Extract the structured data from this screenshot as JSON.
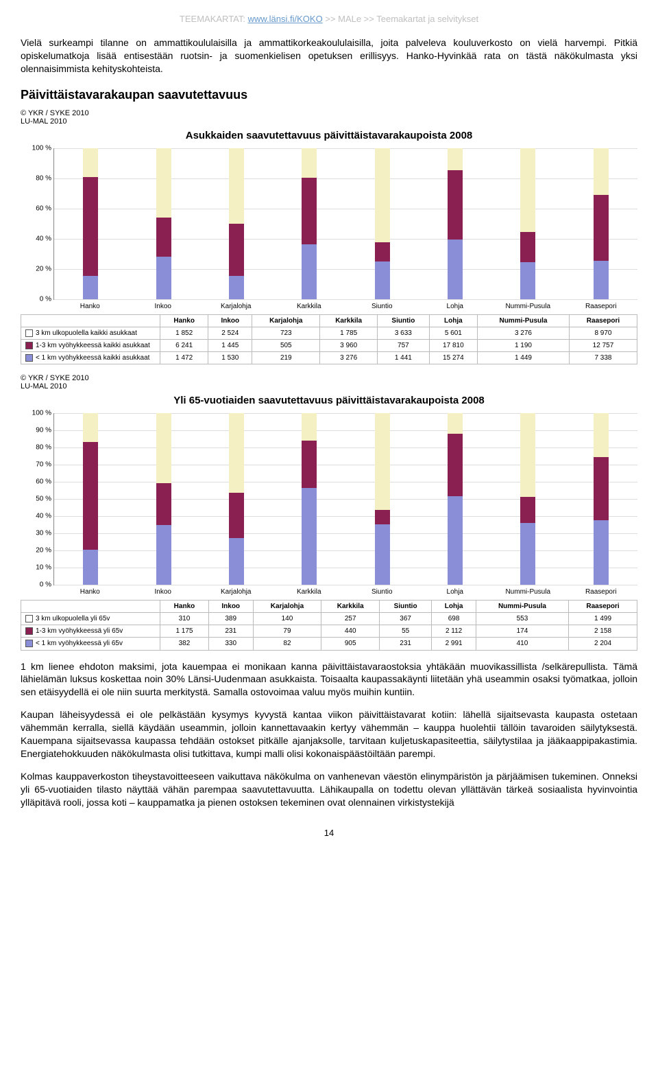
{
  "breadcrumb": {
    "prefix": "TEEMAKARTAT: ",
    "link": "www.länsi.fi/KOKO",
    "tail": " >> MALe >> Teemakartat ja selvitykset"
  },
  "p1": "Vielä surkeampi tilanne on ammattikoululaisilla ja ammattikorkeakoululaisilla, joita palveleva kouluverkosto on vielä harvempi. Pitkiä opiskelumatkoja lisää entisestään ruotsin- ja suomenkielisen opetuksen erillisyys. Hanko-Hyvinkää rata on tästä näkökulmasta yksi olennaisimmista kehityskohteista.",
  "section_title": "Päivittäistavarakaupan saavutettavuus",
  "chart1": {
    "attribution": "© YKR / SYKE 2010\nLU-MAL 2010",
    "title": "Asukkaiden saavutettavuus päivittäistavarakaupoista 2008",
    "categories": [
      "Hanko",
      "Inkoo",
      "Karjalohja",
      "Karkkila",
      "Siuntio",
      "Lohja",
      "Nummi-Pusula",
      "Raasepori"
    ],
    "series": [
      {
        "label": "3 km ulkopuolella kaikki asukkaat",
        "color": "#f5f0c4",
        "sq": "#ffffff"
      },
      {
        "label": "1-3 km vyöhykkeessä kaikki asukkaat",
        "color": "#8a1f52",
        "sq": "#8a1f52"
      },
      {
        "label": "< 1 km vyöhykkeessä kaikki asukkaat",
        "color": "#8a8ed6",
        "sq": "#8a8ed6"
      }
    ],
    "values": [
      [
        1852,
        2524,
        723,
        1785,
        3633,
        5601,
        3276,
        8970
      ],
      [
        6241,
        1445,
        505,
        3960,
        757,
        17810,
        1190,
        12757
      ],
      [
        1472,
        1530,
        219,
        3276,
        1441,
        15274,
        1449,
        7338
      ]
    ],
    "ymax": 100,
    "ystep": 20
  },
  "chart2": {
    "attribution": "© YKR / SYKE 2010\nLU-MAL 2010",
    "title": "Yli 65-vuotiaiden saavutettavuus päivittäistavarakaupoista 2008",
    "categories": [
      "Hanko",
      "Inkoo",
      "Karjalohja",
      "Karkkila",
      "Siuntio",
      "Lohja",
      "Nummi-Pusula",
      "Raasepori"
    ],
    "series": [
      {
        "label": "3 km ulkopuolella yli 65v",
        "color": "#f5f0c4",
        "sq": "#ffffff"
      },
      {
        "label": "1-3 km vyöhykkeessä yli 65v",
        "color": "#8a1f52",
        "sq": "#8a1f52"
      },
      {
        "label": "< 1 km vyöhykkeessä yli 65v",
        "color": "#8a8ed6",
        "sq": "#8a8ed6"
      }
    ],
    "values": [
      [
        310,
        389,
        140,
        257,
        367,
        698,
        553,
        1499
      ],
      [
        1175,
        231,
        79,
        440,
        55,
        2112,
        174,
        2158
      ],
      [
        382,
        330,
        82,
        905,
        231,
        2991,
        410,
        2204
      ]
    ],
    "ymax": 100,
    "ystep": 10
  },
  "p2": "1 km lienee ehdoton maksimi, jota kauempaa ei monikaan kanna päivittäistavaraostoksia yhtäkään muovikassillista /selkärepullista. Tämä lähielämän luksus koskettaa noin 30% Länsi-Uudenmaan asukkaista. Toisaalta kaupassakäynti liitetään yhä useammin osaksi työmatkaa, jolloin sen etäisyydellä ei ole niin suurta merkitystä. Samalla ostovoimaa valuu myös muihin kuntiin.",
  "p3": "Kaupan läheisyydessä ei ole pelkästään kysymys kyvystä kantaa viikon päivittäistavarat kotiin: lähellä sijaitsevasta kaupasta ostetaan vähemmän kerralla, siellä käydään useammin, jolloin kannettavaakin kertyy vähemmän – kauppa huolehtii tällöin tavaroiden säilytyksestä. Kauempana sijaitsevassa kaupassa tehdään ostokset pitkälle ajanjaksolle, tarvitaan kuljetuskapasiteettia, säilytystilaa ja jääkaappipakastimia. Energiatehokkuuden näkökulmasta olisi tutkittava, kumpi malli olisi kokonaispäästöiltään parempi.",
  "p4": "Kolmas kauppaverkoston tiheystavoitteeseen vaikuttava näkökulma on vanhenevan väestön elinympäristön ja pärjäämisen tukeminen. Onneksi yli 65-vuotiaiden tilasto näyttää vähän parempaa saavutettavuutta. Lähikaupalla on todettu olevan yllättävän tärkeä sosiaalista hyvinvointia ylläpitävä rooli, jossa koti – kauppamatka ja pienen ostoksen tekeminen ovat olennainen virkistystekijä",
  "page_number": "14"
}
